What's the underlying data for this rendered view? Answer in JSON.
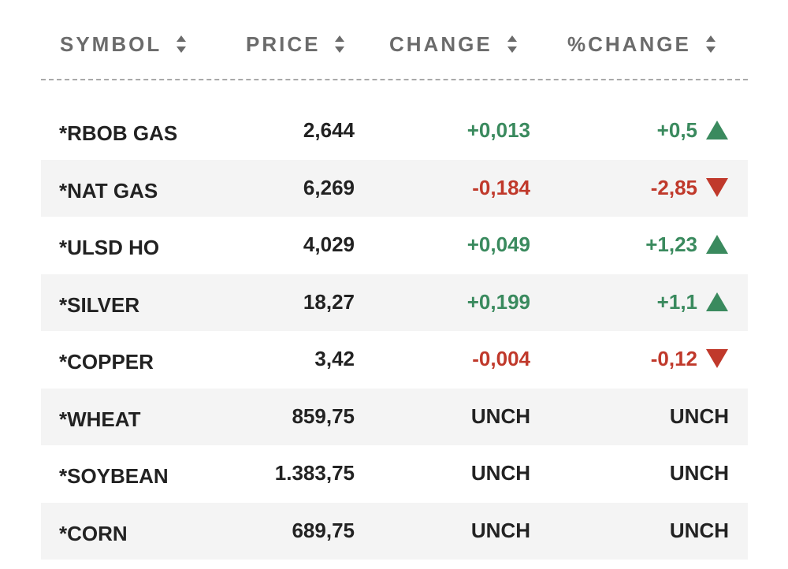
{
  "header": {
    "columns": [
      {
        "key": "symbol",
        "label": "SYMBOL"
      },
      {
        "key": "price",
        "label": "PRICE"
      },
      {
        "key": "change",
        "label": "CHANGE"
      },
      {
        "key": "pct_change",
        "label": "%CHANGE"
      }
    ]
  },
  "colors": {
    "up": "#3a8a5e",
    "down": "#c0392b",
    "header_text": "#6b6b6b",
    "row_alt_bg": "#f4f4f4"
  },
  "rows": [
    {
      "symbol": "*RBOB GAS",
      "price": "2,644",
      "change": "+0,013",
      "pct_change": "+0,5",
      "direction": "up",
      "arrow_icon": "triangle-up-icon"
    },
    {
      "symbol": "*NAT GAS",
      "price": "6,269",
      "change": "-0,184",
      "pct_change": "-2,85",
      "direction": "down",
      "arrow_icon": "triangle-down-icon"
    },
    {
      "symbol": "*ULSD HO",
      "price": "4,029",
      "change": "+0,049",
      "pct_change": "+1,23",
      "direction": "up",
      "arrow_icon": "triangle-up-icon"
    },
    {
      "symbol": "*SILVER",
      "price": "18,27",
      "change": "+0,199",
      "pct_change": "+1,1",
      "direction": "up",
      "arrow_icon": "triangle-up-icon"
    },
    {
      "symbol": "*COPPER",
      "price": "3,42",
      "change": "-0,004",
      "pct_change": "-0,12",
      "direction": "down",
      "arrow_icon": "triangle-down-icon"
    },
    {
      "symbol": "*WHEAT",
      "price": "859,75",
      "change": "UNCH",
      "pct_change": "UNCH",
      "direction": "neutral",
      "arrow_icon": ""
    },
    {
      "symbol": "*SOYBEAN",
      "price": "1.383,75",
      "change": "UNCH",
      "pct_change": "UNCH",
      "direction": "neutral",
      "arrow_icon": ""
    },
    {
      "symbol": "*CORN",
      "price": "689,75",
      "change": "UNCH",
      "pct_change": "UNCH",
      "direction": "neutral",
      "arrow_icon": ""
    }
  ]
}
